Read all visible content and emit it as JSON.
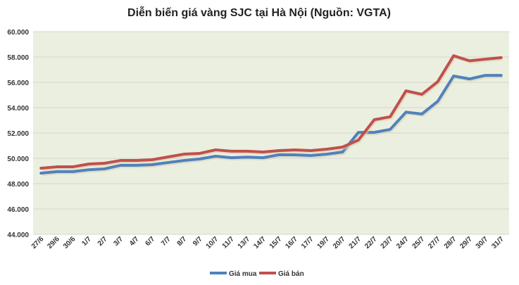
{
  "chart_data": {
    "type": "line",
    "title": "Diễn biến giá vàng SJC tại Hà Nội (Nguồn: VGTA)",
    "xlabel": "",
    "ylabel": "",
    "ylim": [
      44000,
      60000
    ],
    "yticks": [
      44000,
      46000,
      48000,
      50000,
      52000,
      54000,
      56000,
      58000,
      60000
    ],
    "ytick_labels": [
      "44.000",
      "46.000",
      "48.000",
      "50.000",
      "52.000",
      "54.000",
      "56.000",
      "58.000",
      "60.000"
    ],
    "grid": true,
    "legend_position": "bottom",
    "categories": [
      "27/6",
      "29/6",
      "30/6",
      "1/7",
      "2/7",
      "3/7",
      "4/7",
      "6/7",
      "7/7",
      "8/7",
      "9/7",
      "10/7",
      "11/7",
      "13/7",
      "14/7",
      "15/7",
      "16/7",
      "17/7",
      "19/7",
      "20/7",
      "21/7",
      "22/7",
      "23/7",
      "24/7",
      "25/7",
      "27/7",
      "28/7",
      "29/7",
      "30/7",
      "31/7"
    ],
    "series": [
      {
        "name": "Giá mua",
        "color": "#4f81bd",
        "values": [
          48830,
          48950,
          48950,
          49100,
          49170,
          49450,
          49450,
          49500,
          49670,
          49830,
          49950,
          50170,
          50050,
          50100,
          50050,
          50280,
          50280,
          50220,
          50330,
          50500,
          52050,
          52050,
          52280,
          53650,
          53500,
          54500,
          56500,
          56270,
          56550,
          56550
        ]
      },
      {
        "name": "Giá bán",
        "color": "#c0504d",
        "values": [
          49220,
          49330,
          49330,
          49550,
          49610,
          49830,
          49830,
          49890,
          50110,
          50330,
          50390,
          50670,
          50560,
          50560,
          50500,
          50610,
          50670,
          50610,
          50720,
          50890,
          51440,
          53050,
          53280,
          55330,
          55050,
          56050,
          58100,
          57700,
          57830,
          57950
        ]
      }
    ]
  },
  "colors": {
    "plot_bg": "#ebefdf",
    "grid": "#d4d4d4"
  }
}
